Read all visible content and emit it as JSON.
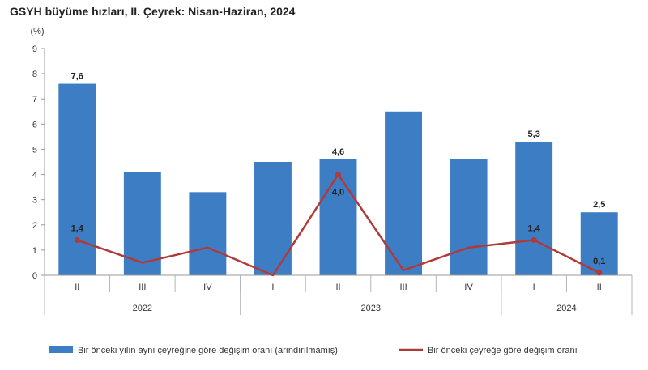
{
  "title": "GSYH büyüme hızları, II. Çeyrek: Nisan-Haziran, 2024",
  "chart_data": {
    "type": "bar",
    "ylabel": "(%)",
    "ylim": [
      0,
      9
    ],
    "yticks": [
      "0",
      "1",
      "2",
      "3",
      "4",
      "5",
      "6",
      "7",
      "8",
      "9"
    ],
    "grid": false,
    "legend_position": "bottom",
    "categories": [
      "II",
      "III",
      "IV",
      "I",
      "II",
      "III",
      "IV",
      "I",
      "II"
    ],
    "year_groups": [
      {
        "label": "2022",
        "start": 0,
        "end": 2
      },
      {
        "label": "2023",
        "start": 3,
        "end": 6
      },
      {
        "label": "2024",
        "start": 7,
        "end": 8
      }
    ],
    "series": [
      {
        "name": "Bir önceki yılın aynı çeyreğine göre değişim oranı (arındırılmamış)",
        "type": "bar",
        "color": "#3c7dc4",
        "values": [
          7.6,
          4.1,
          3.3,
          4.5,
          4.6,
          6.5,
          4.6,
          5.3,
          2.5
        ],
        "labels": [
          "7,6",
          "",
          "",
          "",
          "4,6",
          "",
          "",
          "5,3",
          "2,5"
        ]
      },
      {
        "name": "Bir önceki çeyreğe göre değişim oranı",
        "type": "line",
        "color": "#b03a3a",
        "values": [
          1.4,
          0.5,
          1.1,
          0.0,
          4.0,
          0.2,
          1.1,
          1.4,
          0.1
        ],
        "labels": [
          "1,4",
          "",
          "",
          "",
          "4,0",
          "",
          "",
          "1,4",
          "0,1"
        ]
      }
    ]
  }
}
